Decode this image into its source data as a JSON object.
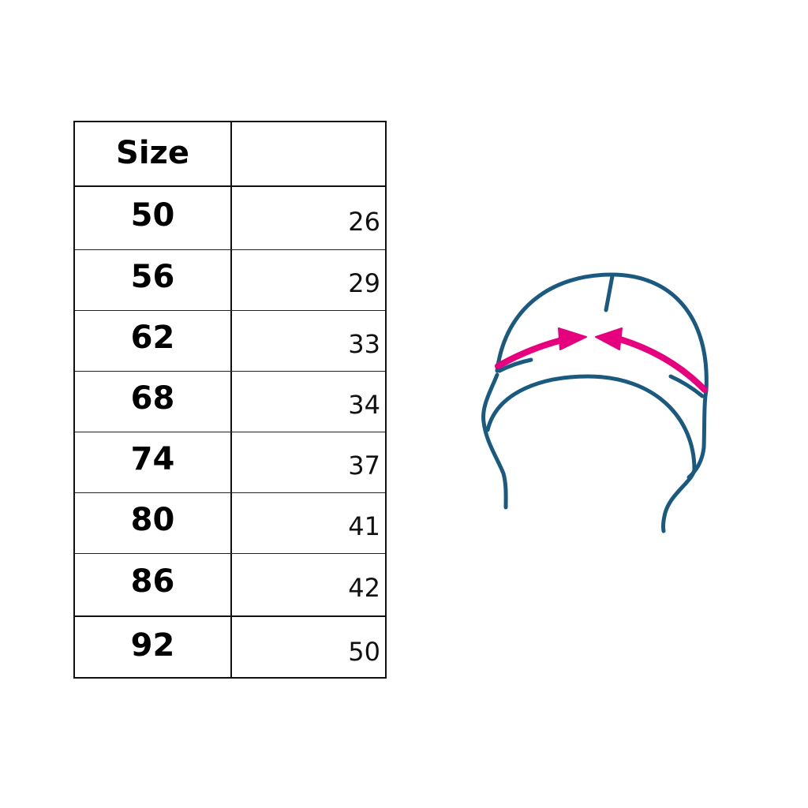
{
  "table": {
    "header": {
      "size": "Size",
      "value": ""
    },
    "rows": [
      {
        "size": "50",
        "value": "26"
      },
      {
        "size": "56",
        "value": "29"
      },
      {
        "size": "62",
        "value": "33"
      },
      {
        "size": "68",
        "value": "34"
      },
      {
        "size": "74",
        "value": "37"
      },
      {
        "size": "80",
        "value": "41"
      },
      {
        "size": "86",
        "value": "42"
      },
      {
        "size": "92",
        "value": "50"
      }
    ]
  },
  "illustration": {
    "icon": "hat-measurement-icon",
    "line_color": "#1b5a80",
    "arrow_color": "#e6007e"
  }
}
